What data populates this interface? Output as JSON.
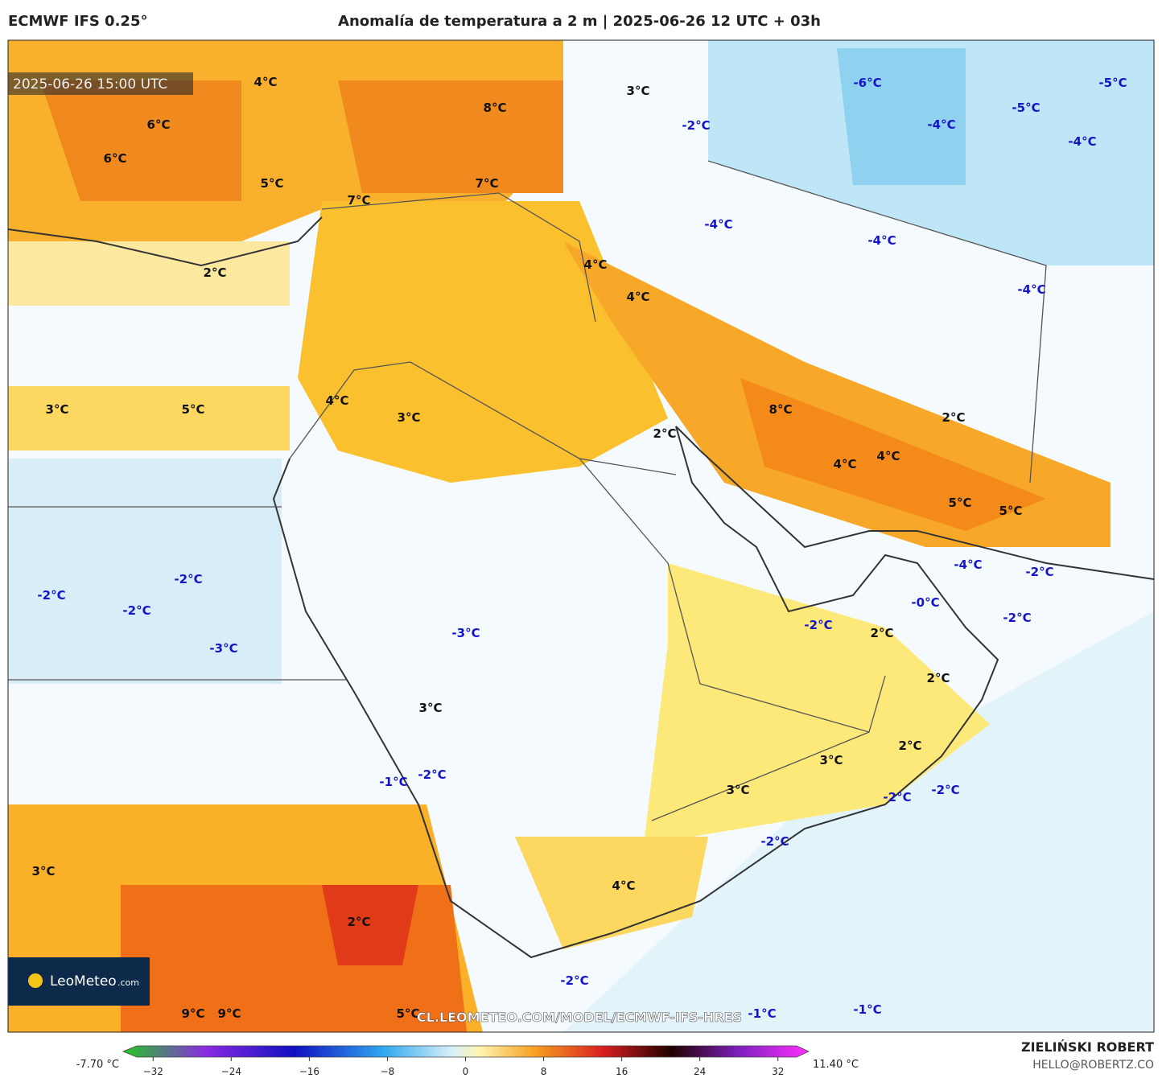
{
  "header": {
    "model": "ECMWF IFS 0.25°",
    "title": "Anomalía de temperatura a 2 m | 2025-06-26 12 UTC + 03h"
  },
  "map": {
    "timestamp": "2025-06-26 15:00 UTC",
    "watermark": "CL.LEOMETEO.COM/MODEL/ECMWF-IFS-HRES",
    "logo": {
      "name": "LeoMeteo",
      "suffix": ".com"
    },
    "labels": [
      {
        "text": "4°C",
        "color": "#111"
      },
      {
        "text": "8°C",
        "color": "#111"
      },
      {
        "text": "3°C",
        "color": "#111"
      },
      {
        "text": "-6°C",
        "color": "#1414c8"
      },
      {
        "text": "-5°C",
        "color": "#1414c8"
      },
      {
        "text": "-5°C",
        "color": "#1414c8"
      },
      {
        "text": "-4°C",
        "color": "#1414c8"
      },
      {
        "text": "-4°C",
        "color": "#1414c8"
      },
      {
        "text": "-2°C",
        "color": "#1414c8"
      },
      {
        "text": "6°C",
        "color": "#111"
      },
      {
        "text": "6°C",
        "color": "#111"
      },
      {
        "text": "5°C",
        "color": "#111"
      },
      {
        "text": "7°C",
        "color": "#111"
      },
      {
        "text": "7°C",
        "color": "#111"
      },
      {
        "text": "-4°C",
        "color": "#1414c8"
      },
      {
        "text": "-4°C",
        "color": "#1414c8"
      },
      {
        "text": "2°C",
        "color": "#111"
      },
      {
        "text": "4°C",
        "color": "#111"
      },
      {
        "text": "4°C",
        "color": "#111"
      },
      {
        "text": "-4°C",
        "color": "#1414c8"
      },
      {
        "text": "3°C",
        "color": "#111"
      },
      {
        "text": "5°C",
        "color": "#111"
      },
      {
        "text": "4°C",
        "color": "#111"
      },
      {
        "text": "3°C",
        "color": "#111"
      },
      {
        "text": "8°C",
        "color": "#111"
      },
      {
        "text": "2°C",
        "color": "#111"
      },
      {
        "text": "2°C",
        "color": "#111"
      },
      {
        "text": "4°C",
        "color": "#111"
      },
      {
        "text": "4°C",
        "color": "#111"
      },
      {
        "text": "5°C",
        "color": "#111"
      },
      {
        "text": "5°C",
        "color": "#111"
      },
      {
        "text": "-4°C",
        "color": "#1414c8"
      },
      {
        "text": "-2°C",
        "color": "#1414c8"
      },
      {
        "text": "-2°C",
        "color": "#1414c8"
      },
      {
        "text": "-2°C",
        "color": "#1414c8"
      },
      {
        "text": "-2°C",
        "color": "#1414c8"
      },
      {
        "text": "-0°C",
        "color": "#1414c8"
      },
      {
        "text": "-2°C",
        "color": "#1414c8"
      },
      {
        "text": "-2°C",
        "color": "#1414c8"
      },
      {
        "text": "-3°C",
        "color": "#1414c8"
      },
      {
        "text": "2°C",
        "color": "#111"
      },
      {
        "text": "-3°C",
        "color": "#1414c8"
      },
      {
        "text": "2°C",
        "color": "#111"
      },
      {
        "text": "3°C",
        "color": "#111"
      },
      {
        "text": "2°C",
        "color": "#111"
      },
      {
        "text": "3°C",
        "color": "#111"
      },
      {
        "text": "-1°C",
        "color": "#1414c8"
      },
      {
        "text": "-2°C",
        "color": "#1414c8"
      },
      {
        "text": "3°C",
        "color": "#111"
      },
      {
        "text": "-2°C",
        "color": "#1414c8"
      },
      {
        "text": "-2°C",
        "color": "#1414c8"
      },
      {
        "text": "-2°C",
        "color": "#1414c8"
      },
      {
        "text": "3°C",
        "color": "#111"
      },
      {
        "text": "4°C",
        "color": "#111"
      },
      {
        "text": "2°C",
        "color": "#111"
      },
      {
        "text": "-2°C",
        "color": "#1414c8"
      },
      {
        "text": "9°C",
        "color": "#111"
      },
      {
        "text": "9°C",
        "color": "#111"
      },
      {
        "text": "5°C",
        "color": "#111"
      },
      {
        "text": "-1°C",
        "color": "#1414c8"
      },
      {
        "text": "-1°C",
        "color": "#1414c8"
      }
    ]
  },
  "colorbar": {
    "min_label": "-7.70 °C",
    "max_label": "11.40 °C",
    "lim": [
      -34,
      34
    ],
    "ticks": [
      {
        "value": -32,
        "label": "−32"
      },
      {
        "value": -24,
        "label": "−24"
      },
      {
        "value": -16,
        "label": "−16"
      },
      {
        "value": -8,
        "label": "−8"
      },
      0,
      8,
      16,
      24,
      32
    ]
  },
  "footer": {
    "author": "ZIELIŃSKI ROBERT",
    "email": "HELLO@ROBERTZ.CO"
  }
}
